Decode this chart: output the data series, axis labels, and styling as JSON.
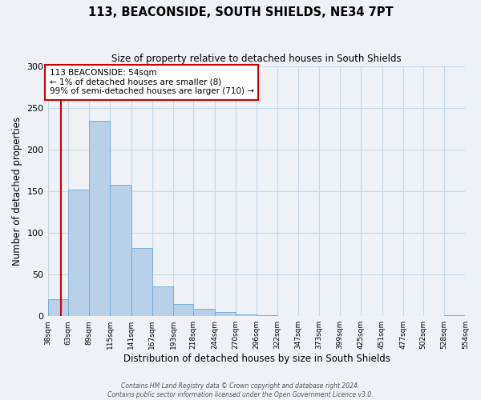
{
  "title": "113, BEACONSIDE, SOUTH SHIELDS, NE34 7PT",
  "subtitle": "Size of property relative to detached houses in South Shields",
  "xlabel": "Distribution of detached houses by size in South Shields",
  "ylabel": "Number of detached properties",
  "bin_edges": [
    38,
    63,
    89,
    115,
    141,
    167,
    193,
    218,
    244,
    270,
    296,
    322,
    347,
    373,
    399,
    425,
    451,
    477,
    502,
    528,
    554
  ],
  "bar_heights": [
    20,
    152,
    235,
    158,
    82,
    36,
    15,
    9,
    5,
    2,
    1,
    0,
    0,
    0,
    0,
    0,
    0,
    0,
    0,
    1
  ],
  "bar_color": "#b8d0e8",
  "bar_edgecolor": "#6aaad4",
  "property_size": 54,
  "vline_color": "#cc0000",
  "annotation_text": "113 BEACONSIDE: 54sqm\n← 1% of detached houses are smaller (8)\n99% of semi-detached houses are larger (710) →",
  "annotation_box_edgecolor": "#cc0000",
  "annotation_box_facecolor": "#ffffff",
  "ylim": [
    0,
    300
  ],
  "yticks": [
    0,
    50,
    100,
    150,
    200,
    250,
    300
  ],
  "grid_color": "#c8d8e8",
  "background_color": "#eef2f6",
  "footer_text": "Contains HM Land Registry data © Crown copyright and database right 2024.\nContains public sector information licensed under the Open Government Licence v3.0."
}
